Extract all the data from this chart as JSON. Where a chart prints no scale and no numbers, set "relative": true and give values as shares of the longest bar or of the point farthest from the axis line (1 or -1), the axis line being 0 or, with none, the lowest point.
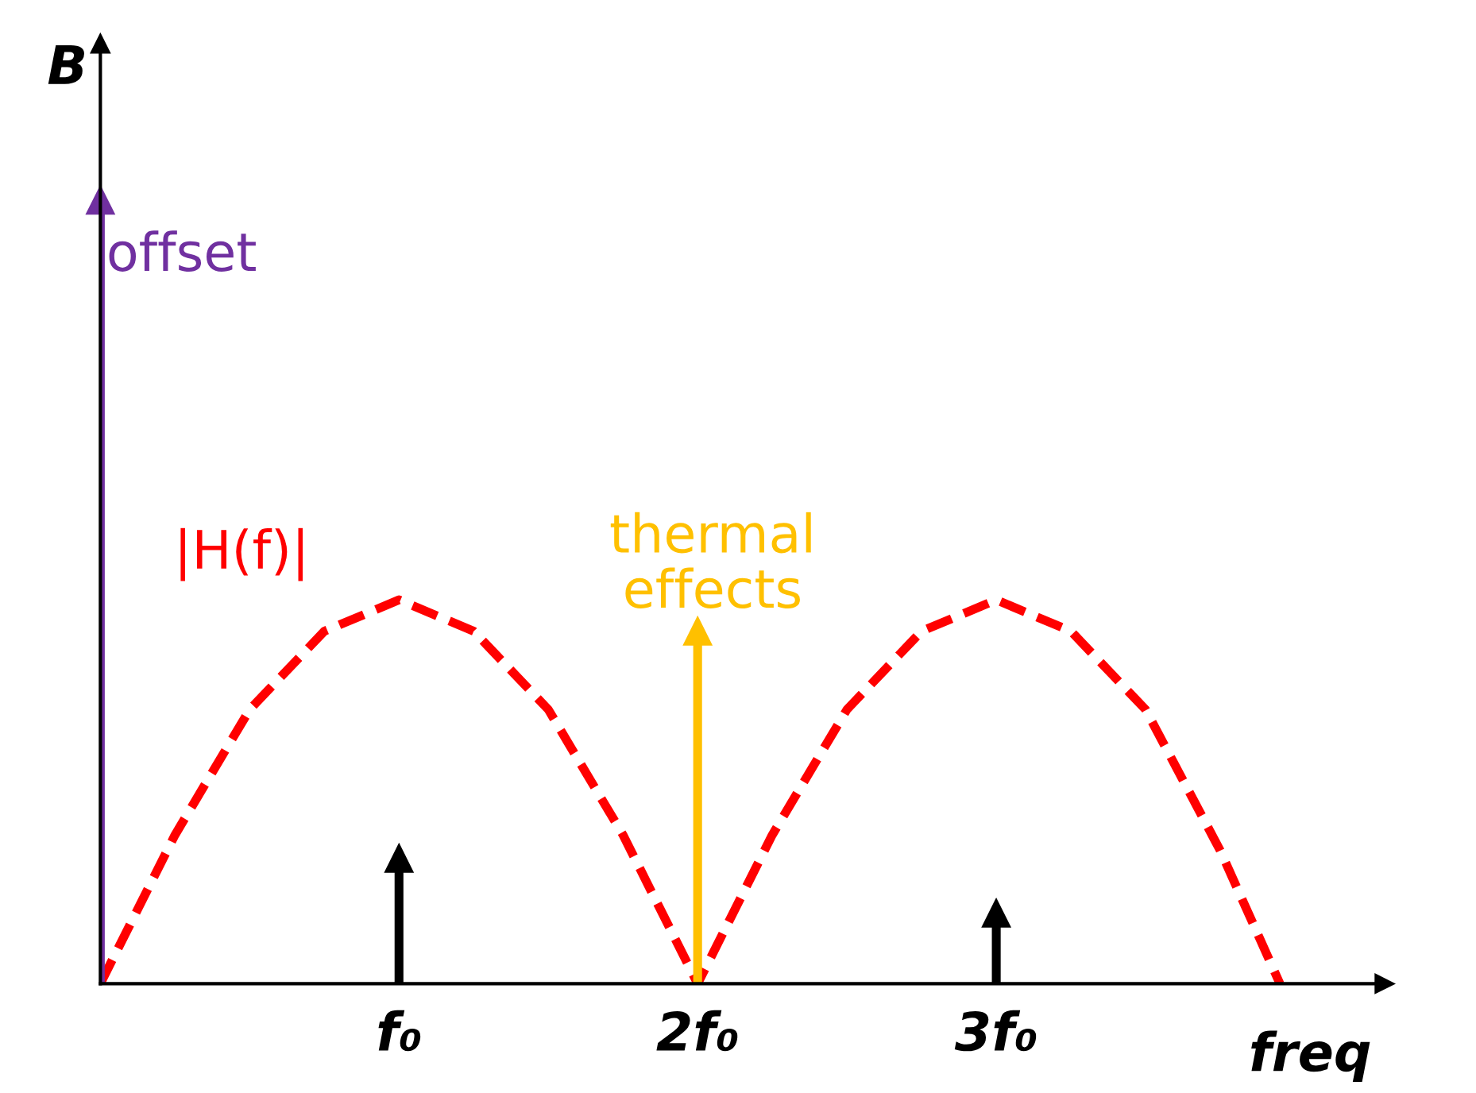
{
  "chart_data": {
    "type": "line",
    "relative": true,
    "xlabel": "freq",
    "ylabel": "B",
    "xlim": [
      0,
      4.3
    ],
    "xticks": [
      {
        "value": 1,
        "label": "f₀"
      },
      {
        "value": 2,
        "label": "2f₀"
      },
      {
        "value": 3,
        "label": "3f₀"
      }
    ],
    "grid": false,
    "legend": false,
    "line_style": "dashed",
    "marker": "none",
    "series": [
      {
        "name": "|H(f)|",
        "color": "#ff0000",
        "x": [
          0,
          0.25,
          0.5,
          0.75,
          1,
          1.25,
          1.5,
          1.75,
          2,
          2.25,
          2.5,
          2.75,
          3,
          3.25,
          3.5,
          3.75,
          3.95
        ],
        "values": [
          0,
          0.19,
          0.35,
          0.45,
          0.49,
          0.45,
          0.35,
          0.19,
          0,
          0.19,
          0.35,
          0.45,
          0.49,
          0.45,
          0.35,
          0.17,
          0
        ]
      },
      {
        "name": "offset",
        "color": "#7030a0",
        "type": "lollipop",
        "marker": "triangle",
        "x": [
          0
        ],
        "values": [
          1
        ]
      },
      {
        "name": "thermal\neffects",
        "color": "#ffc000",
        "type": "lollipop",
        "marker": "triangle",
        "x": [
          2
        ],
        "values": [
          0.45
        ]
      },
      {
        "color": "#000000",
        "type": "lollipop",
        "marker": "triangle",
        "x": [
          1,
          3
        ],
        "values": [
          0.16,
          0.09
        ]
      }
    ]
  }
}
